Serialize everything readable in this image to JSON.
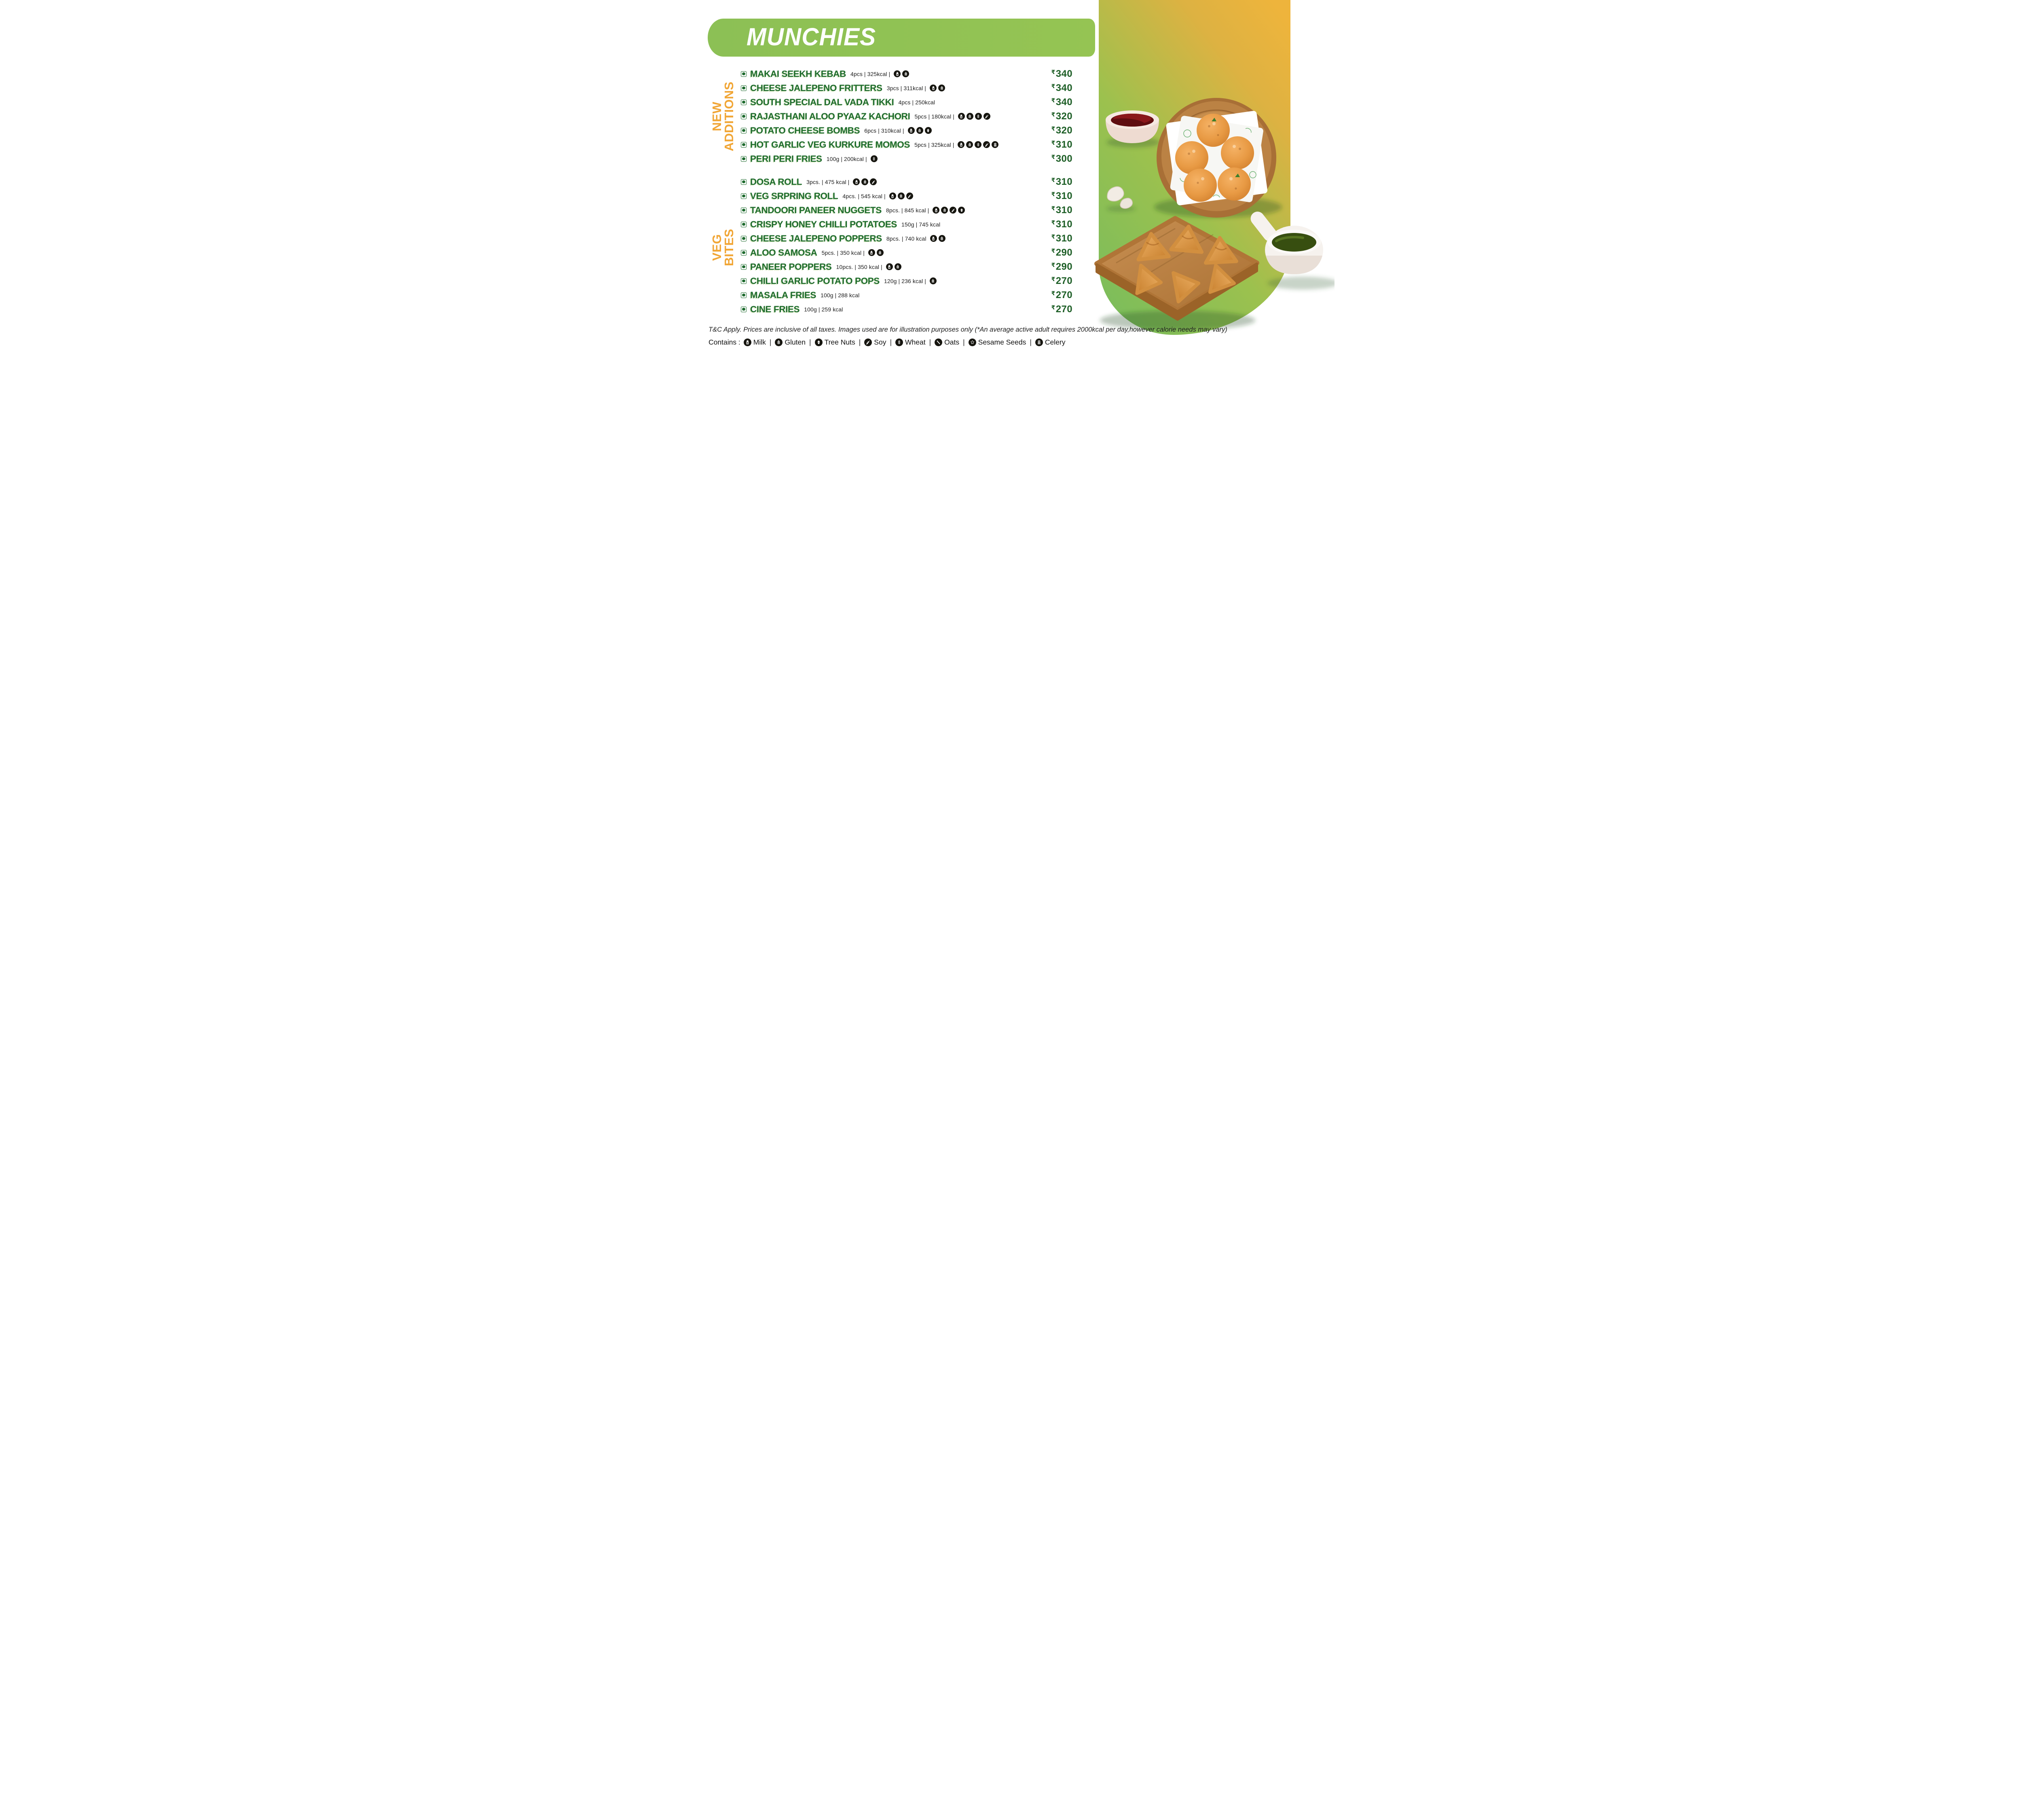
{
  "title": "MUNCHIES",
  "currency": "₹",
  "sections": [
    {
      "label": "NEW\nADDITIONS",
      "items": [
        {
          "name": "MAKAI SEEKH KEBAB",
          "details": "4pcs | 325kcal |",
          "allergens": [
            "milk",
            "gluten"
          ],
          "price": "340"
        },
        {
          "name": "CHEESE JALEPENO FRITTERS",
          "details": "3pcs | 311kcal |",
          "allergens": [
            "milk",
            "gluten"
          ],
          "price": "340"
        },
        {
          "name": "SOUTH SPECIAL DAL VADA TIKKI",
          "details": "4pcs | 250kcal",
          "allergens": [],
          "price": "340"
        },
        {
          "name": "RAJASTHANI ALOO PYAAZ KACHORI",
          "details": "5pcs | 180kcal |",
          "allergens": [
            "milk",
            "gluten",
            "wheat",
            "soy"
          ],
          "price": "320"
        },
        {
          "name": "POTATO CHEESE BOMBS",
          "details": "6pcs | 310kcal |",
          "allergens": [
            "milk",
            "gluten",
            "treenut"
          ],
          "price": "320"
        },
        {
          "name": "HOT GARLIC VEG KURKURE MOMOS",
          "details": "5pcs | 325kcal |",
          "allergens": [
            "milk",
            "gluten",
            "wheat",
            "soy",
            "celery"
          ],
          "price": "310"
        },
        {
          "name": "PERI PERI FRIES",
          "details": "100g | 200kcal |",
          "allergens": [
            "wheat"
          ],
          "price": "300"
        }
      ]
    },
    {
      "label": "VEG\nBITES",
      "items": [
        {
          "name": "DOSA ROLL",
          "details": "3pcs. | 475 kcal |",
          "allergens": [
            "milk",
            "gluten",
            "soy"
          ],
          "price": "310"
        },
        {
          "name": "VEG SRPRING ROLL",
          "details": "4pcs. | 545 kcal |",
          "allergens": [
            "milk",
            "gluten",
            "soy"
          ],
          "price": "310"
        },
        {
          "name": "TANDOORI PANEER NUGGETS",
          "details": "8pcs. | 845 kcal |",
          "allergens": [
            "milk",
            "gluten",
            "soy",
            "treenut"
          ],
          "price": "310"
        },
        {
          "name": "CRISPY HONEY CHILLI POTATOES",
          "details": "150g | 745 kcal",
          "allergens": [],
          "price": "310"
        },
        {
          "name": "CHEESE JALEPENO POPPERS",
          "details": "8pcs. | 740 kcal",
          "allergens": [
            "milk",
            "gluten"
          ],
          "price": "310"
        },
        {
          "name": "ALOO SAMOSA",
          "details": "5pcs. | 350 kcal |",
          "allergens": [
            "milk",
            "gluten"
          ],
          "price": "290"
        },
        {
          "name": "PANEER POPPERS",
          "details": "10pcs. | 350 kcal |",
          "allergens": [
            "milk",
            "gluten"
          ],
          "price": "290"
        },
        {
          "name": "CHILLI GARLIC POTATO POPS",
          "details": "120g | 236 kcal |",
          "allergens": [
            "gluten"
          ],
          "price": "270"
        },
        {
          "name": "MASALA FRIES",
          "details": "100g | 288 kcal",
          "allergens": [],
          "price": "270"
        },
        {
          "name": "CINE FRIES",
          "details": "100g | 259 kcal",
          "allergens": [],
          "price": "270"
        }
      ]
    }
  ],
  "footer": {
    "tnc": "T&C Apply. Prices are inclusive of all taxes. Images used are for illustration purposes only (*An average active adult requires 2000kcal per day,however calorie needs may vary)",
    "contains_label": "Contains :",
    "separator": "|",
    "legend": [
      {
        "icon": "milk",
        "label": "Milk"
      },
      {
        "icon": "gluten",
        "label": "Gluten"
      },
      {
        "icon": "treenut",
        "label": "Tree Nuts"
      },
      {
        "icon": "soy",
        "label": "Soy"
      },
      {
        "icon": "wheat",
        "label": "Wheat"
      },
      {
        "icon": "oats",
        "label": "Oats"
      },
      {
        "icon": "sesame",
        "label": "Sesame Seeds"
      },
      {
        "icon": "celery",
        "label": "Celery"
      }
    ]
  },
  "colors": {
    "banner_green": "#8cc055",
    "panel_gradient_start": "#7cbd5b",
    "panel_gradient_end": "#eeb43c",
    "item_name_green": "#1e6b2e",
    "price_green": "#1d5e26",
    "section_label_orange": "#f1a636",
    "allergen_badge": "#16150f"
  }
}
